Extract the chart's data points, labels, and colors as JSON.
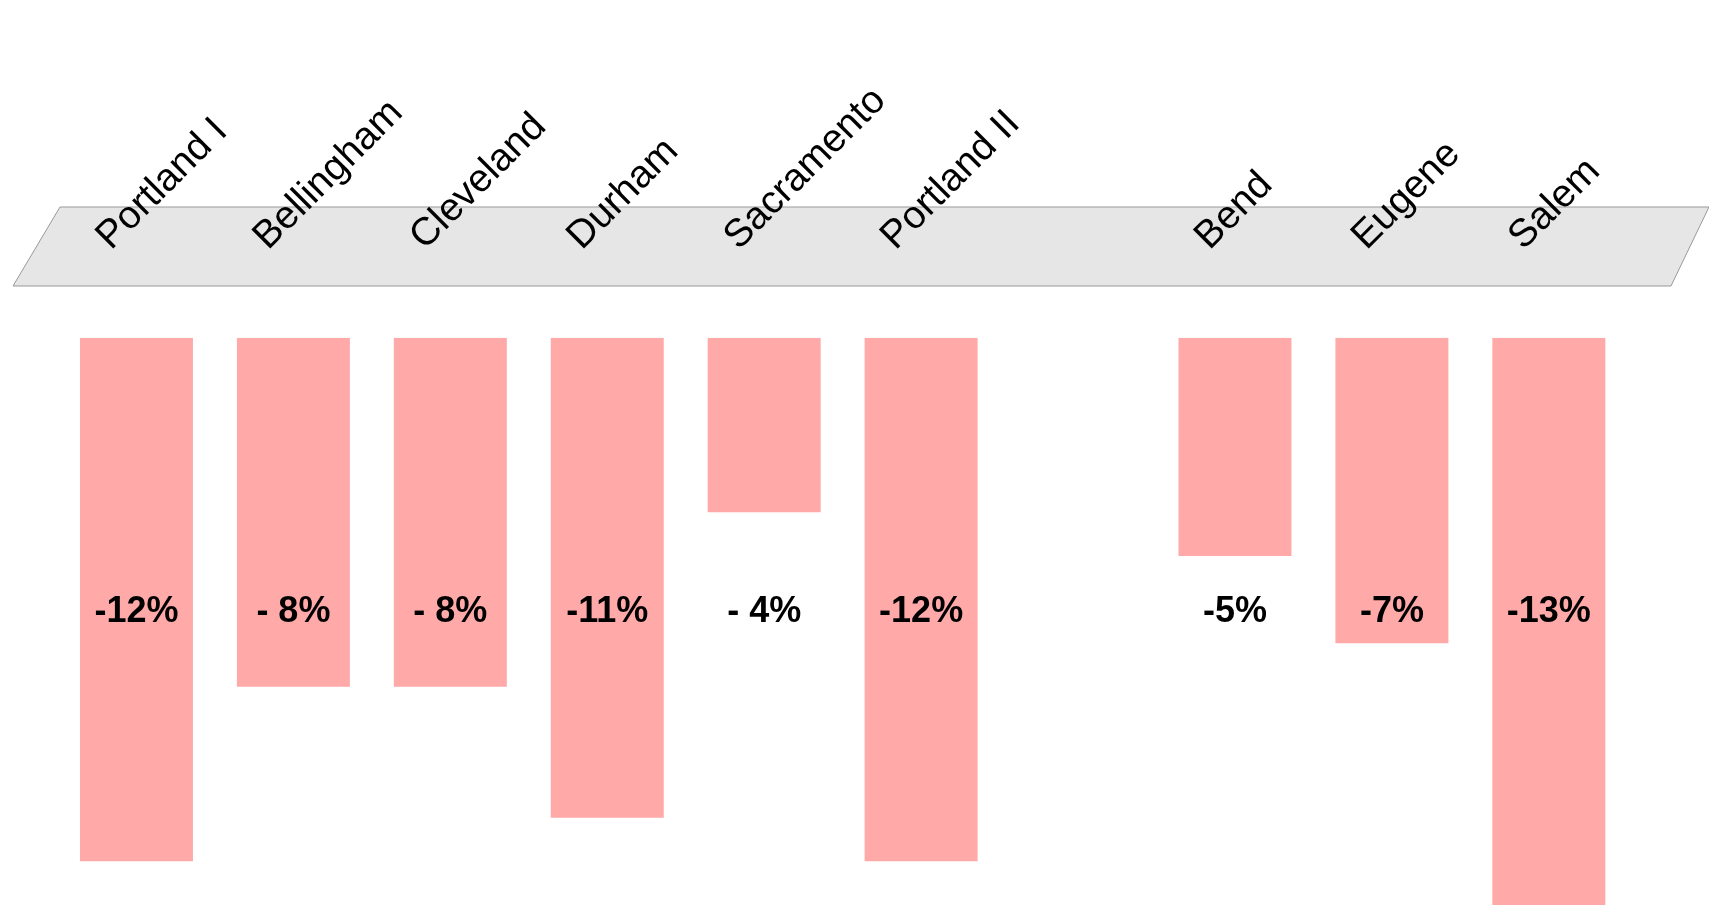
{
  "chart_data": {
    "type": "bar",
    "categories": [
      "Portland I",
      "Bellingham",
      "Cleveland",
      "Durham",
      "Sacramento",
      "Portland II",
      null,
      "Bend",
      "Eugene",
      "Salem"
    ],
    "values": [
      -12,
      -8,
      -8,
      -11,
      -4,
      -12,
      null,
      -5,
      -7,
      -13
    ],
    "value_labels": [
      "-12%",
      "- 8%",
      "- 8%",
      "-11%",
      "- 4%",
      "-12%",
      null,
      "-5%",
      "-7%",
      "-13%"
    ],
    "color": "#ffa9a9",
    "grid": false,
    "legend": false,
    "tick_labels": "x"
  }
}
